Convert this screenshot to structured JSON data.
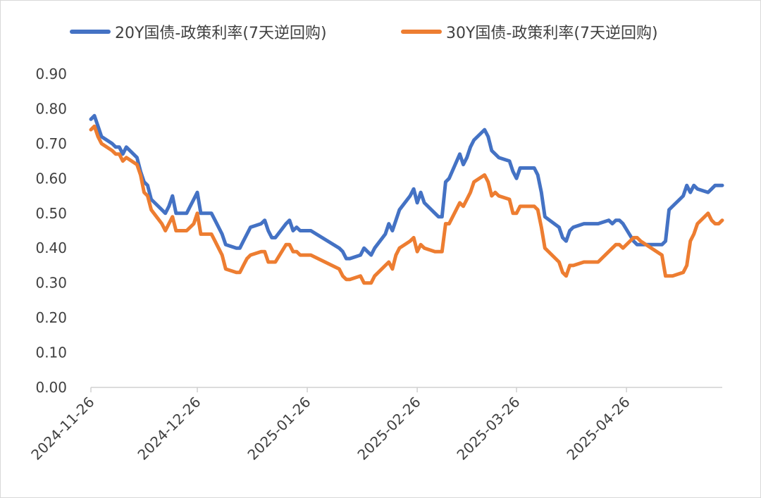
{
  "chart_data": {
    "type": "line",
    "title": "",
    "xlabel": "",
    "ylabel": "",
    "ylim": [
      0,
      0.9
    ],
    "grid": false,
    "legend_position": "top",
    "y_ticks": [
      "0.00",
      "0.10",
      "0.20",
      "0.30",
      "0.40",
      "0.50",
      "0.60",
      "0.70",
      "0.80",
      "0.90"
    ],
    "x_tick_labels": [
      "2024-11-26",
      "2024-12-26",
      "2025-01-26",
      "2025-02-26",
      "2025-03-26",
      "2025-04-26"
    ],
    "x_start": "2024-11-26",
    "x_end": "2025-05-23",
    "series": [
      {
        "name": "20Y国债-政策利率(7天逆回购)",
        "color": "#4472c4",
        "x": [
          "2024-11-26",
          "2024-11-27",
          "2024-11-28",
          "2024-11-29",
          "2024-12-02",
          "2024-12-03",
          "2024-12-04",
          "2024-12-05",
          "2024-12-06",
          "2024-12-09",
          "2024-12-10",
          "2024-12-11",
          "2024-12-12",
          "2024-12-13",
          "2024-12-16",
          "2024-12-17",
          "2024-12-18",
          "2024-12-19",
          "2024-12-20",
          "2024-12-23",
          "2024-12-24",
          "2024-12-25",
          "2024-12-26",
          "2024-12-27",
          "2024-12-30",
          "2024-12-31",
          "2025-01-02",
          "2025-01-03",
          "2025-01-06",
          "2025-01-07",
          "2025-01-08",
          "2025-01-09",
          "2025-01-10",
          "2025-01-13",
          "2025-01-14",
          "2025-01-15",
          "2025-01-16",
          "2025-01-17",
          "2025-01-20",
          "2025-01-21",
          "2025-01-22",
          "2025-01-23",
          "2025-01-24",
          "2025-01-27",
          "2025-02-04",
          "2025-02-05",
          "2025-02-06",
          "2025-02-07",
          "2025-02-10",
          "2025-02-11",
          "2025-02-12",
          "2025-02-13",
          "2025-02-14",
          "2025-02-17",
          "2025-02-18",
          "2025-02-19",
          "2025-02-20",
          "2025-02-21",
          "2025-02-24",
          "2025-02-25",
          "2025-02-26",
          "2025-02-27",
          "2025-02-28",
          "2025-03-03",
          "2025-03-04",
          "2025-03-05",
          "2025-03-06",
          "2025-03-07",
          "2025-03-10",
          "2025-03-11",
          "2025-03-12",
          "2025-03-13",
          "2025-03-14",
          "2025-03-17",
          "2025-03-18",
          "2025-03-19",
          "2025-03-20",
          "2025-03-21",
          "2025-03-24",
          "2025-03-25",
          "2025-03-26",
          "2025-03-27",
          "2025-03-28",
          "2025-03-31",
          "2025-04-01",
          "2025-04-02",
          "2025-04-03",
          "2025-04-07",
          "2025-04-08",
          "2025-04-09",
          "2025-04-10",
          "2025-04-11",
          "2025-04-14",
          "2025-04-15",
          "2025-04-16",
          "2025-04-17",
          "2025-04-18",
          "2025-04-21",
          "2025-04-22",
          "2025-04-23",
          "2025-04-24",
          "2025-04-25",
          "2025-04-28",
          "2025-04-29",
          "2025-04-30",
          "2025-05-06",
          "2025-05-07",
          "2025-05-08",
          "2025-05-09",
          "2025-05-12",
          "2025-05-13",
          "2025-05-14",
          "2025-05-15",
          "2025-05-16",
          "2025-05-19",
          "2025-05-20",
          "2025-05-21",
          "2025-05-22",
          "2025-05-23"
        ],
        "y": [
          0.77,
          0.78,
          0.75,
          0.72,
          0.7,
          0.69,
          0.69,
          0.67,
          0.69,
          0.66,
          0.62,
          0.59,
          0.58,
          0.54,
          0.51,
          0.5,
          0.52,
          0.55,
          0.5,
          0.5,
          0.52,
          0.54,
          0.56,
          0.5,
          0.5,
          0.48,
          0.44,
          0.41,
          0.4,
          0.4,
          0.42,
          0.44,
          0.46,
          0.47,
          0.48,
          0.45,
          0.43,
          0.43,
          0.47,
          0.48,
          0.45,
          0.46,
          0.45,
          0.45,
          0.4,
          0.39,
          0.37,
          0.37,
          0.38,
          0.4,
          0.39,
          0.38,
          0.4,
          0.44,
          0.47,
          0.45,
          0.48,
          0.51,
          0.55,
          0.57,
          0.53,
          0.56,
          0.53,
          0.5,
          0.49,
          0.49,
          0.59,
          0.6,
          0.67,
          0.64,
          0.66,
          0.69,
          0.71,
          0.74,
          0.72,
          0.68,
          0.67,
          0.66,
          0.65,
          0.62,
          0.6,
          0.63,
          0.63,
          0.63,
          0.61,
          0.56,
          0.49,
          0.46,
          0.43,
          0.42,
          0.45,
          0.46,
          0.47,
          0.47,
          0.47,
          0.47,
          0.47,
          0.48,
          0.47,
          0.48,
          0.48,
          0.47,
          0.42,
          0.41,
          0.41,
          0.41,
          0.42,
          0.51,
          0.52,
          0.55,
          0.58,
          0.56,
          0.58,
          0.57,
          0.56,
          0.57,
          0.58,
          0.58,
          0.58
        ]
      },
      {
        "name": "30Y国债-政策利率(7天逆回购)",
        "color": "#ed7d31",
        "x": [
          "2024-11-26",
          "2024-11-27",
          "2024-11-28",
          "2024-11-29",
          "2024-12-02",
          "2024-12-03",
          "2024-12-04",
          "2024-12-05",
          "2024-12-06",
          "2024-12-09",
          "2024-12-10",
          "2024-12-11",
          "2024-12-12",
          "2024-12-13",
          "2024-12-16",
          "2024-12-17",
          "2024-12-18",
          "2024-12-19",
          "2024-12-20",
          "2024-12-23",
          "2024-12-24",
          "2024-12-25",
          "2024-12-26",
          "2024-12-27",
          "2024-12-30",
          "2024-12-31",
          "2025-01-02",
          "2025-01-03",
          "2025-01-06",
          "2025-01-07",
          "2025-01-08",
          "2025-01-09",
          "2025-01-10",
          "2025-01-13",
          "2025-01-14",
          "2025-01-15",
          "2025-01-16",
          "2025-01-17",
          "2025-01-20",
          "2025-01-21",
          "2025-01-22",
          "2025-01-23",
          "2025-01-24",
          "2025-01-27",
          "2025-02-04",
          "2025-02-05",
          "2025-02-06",
          "2025-02-07",
          "2025-02-10",
          "2025-02-11",
          "2025-02-12",
          "2025-02-13",
          "2025-02-14",
          "2025-02-17",
          "2025-02-18",
          "2025-02-19",
          "2025-02-20",
          "2025-02-21",
          "2025-02-24",
          "2025-02-25",
          "2025-02-26",
          "2025-02-27",
          "2025-02-28",
          "2025-03-03",
          "2025-03-04",
          "2025-03-05",
          "2025-03-06",
          "2025-03-07",
          "2025-03-10",
          "2025-03-11",
          "2025-03-12",
          "2025-03-13",
          "2025-03-14",
          "2025-03-17",
          "2025-03-18",
          "2025-03-19",
          "2025-03-20",
          "2025-03-21",
          "2025-03-24",
          "2025-03-25",
          "2025-03-26",
          "2025-03-27",
          "2025-03-28",
          "2025-03-31",
          "2025-04-01",
          "2025-04-02",
          "2025-04-03",
          "2025-04-07",
          "2025-04-08",
          "2025-04-09",
          "2025-04-10",
          "2025-04-11",
          "2025-04-14",
          "2025-04-15",
          "2025-04-16",
          "2025-04-17",
          "2025-04-18",
          "2025-04-21",
          "2025-04-22",
          "2025-04-23",
          "2025-04-24",
          "2025-04-25",
          "2025-04-28",
          "2025-04-29",
          "2025-04-30",
          "2025-05-06",
          "2025-05-07",
          "2025-05-08",
          "2025-05-09",
          "2025-05-12",
          "2025-05-13",
          "2025-05-14",
          "2025-05-15",
          "2025-05-16",
          "2025-05-19",
          "2025-05-20",
          "2025-05-21",
          "2025-05-22",
          "2025-05-23"
        ],
        "y": [
          0.74,
          0.75,
          0.72,
          0.7,
          0.68,
          0.67,
          0.67,
          0.65,
          0.66,
          0.64,
          0.61,
          0.56,
          0.55,
          0.51,
          0.47,
          0.45,
          0.47,
          0.49,
          0.45,
          0.45,
          0.46,
          0.47,
          0.5,
          0.44,
          0.44,
          0.42,
          0.38,
          0.34,
          0.33,
          0.33,
          0.35,
          0.37,
          0.38,
          0.39,
          0.39,
          0.36,
          0.36,
          0.36,
          0.41,
          0.41,
          0.39,
          0.39,
          0.38,
          0.38,
          0.34,
          0.32,
          0.31,
          0.31,
          0.32,
          0.3,
          0.3,
          0.3,
          0.32,
          0.35,
          0.36,
          0.34,
          0.38,
          0.4,
          0.42,
          0.43,
          0.39,
          0.41,
          0.4,
          0.39,
          0.39,
          0.39,
          0.47,
          0.47,
          0.53,
          0.52,
          0.54,
          0.56,
          0.59,
          0.61,
          0.59,
          0.55,
          0.56,
          0.55,
          0.54,
          0.5,
          0.5,
          0.52,
          0.52,
          0.52,
          0.51,
          0.46,
          0.4,
          0.36,
          0.33,
          0.32,
          0.35,
          0.35,
          0.36,
          0.36,
          0.36,
          0.36,
          0.36,
          0.39,
          0.4,
          0.41,
          0.41,
          0.4,
          0.43,
          0.43,
          0.42,
          0.38,
          0.32,
          0.32,
          0.32,
          0.33,
          0.35,
          0.42,
          0.44,
          0.47,
          0.5,
          0.48,
          0.47,
          0.47,
          0.48
        ]
      }
    ]
  }
}
